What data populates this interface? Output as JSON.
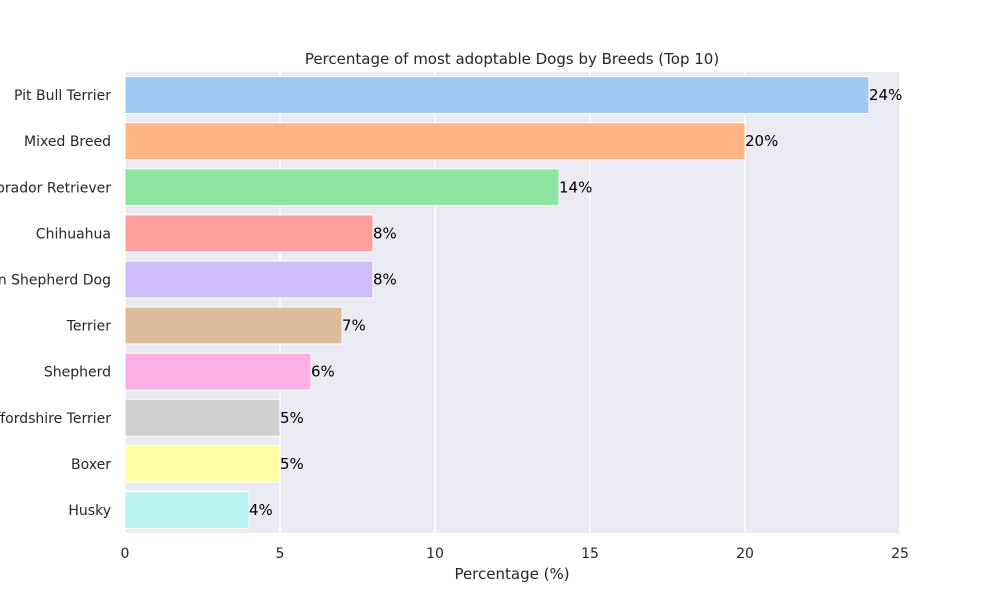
{
  "chart_data": {
    "type": "bar",
    "orientation": "horizontal",
    "title": "Percentage of most adoptable Dogs by Breeds (Top 10)",
    "xlabel": "Percentage (%)",
    "ylabel": "",
    "xlim": [
      0,
      25
    ],
    "x_ticks": [
      0,
      5,
      10,
      15,
      20,
      25
    ],
    "grid": true,
    "categories": [
      "Pit Bull Terrier",
      "Mixed Breed",
      "Labrador Retriever",
      "Chihuahua",
      "German Shepherd Dog",
      "Terrier",
      "Shepherd",
      "Staffordshire Terrier",
      "Boxer",
      "Husky"
    ],
    "values": [
      24,
      20,
      14,
      8,
      8,
      7,
      6,
      5,
      5,
      4
    ],
    "value_labels": [
      "24%",
      "20%",
      "14%",
      "8%",
      "8%",
      "7%",
      "6%",
      "5%",
      "5%",
      "4%"
    ],
    "colors": [
      "#a1c9f4",
      "#ffb482",
      "#8de5a1",
      "#ff9f9b",
      "#d0bbff",
      "#debb9b",
      "#fab0e4",
      "#cfcfcf",
      "#fffea3",
      "#b9f2f0"
    ],
    "background_color": "#eaeaf2",
    "grid_color": "#ffffff"
  }
}
